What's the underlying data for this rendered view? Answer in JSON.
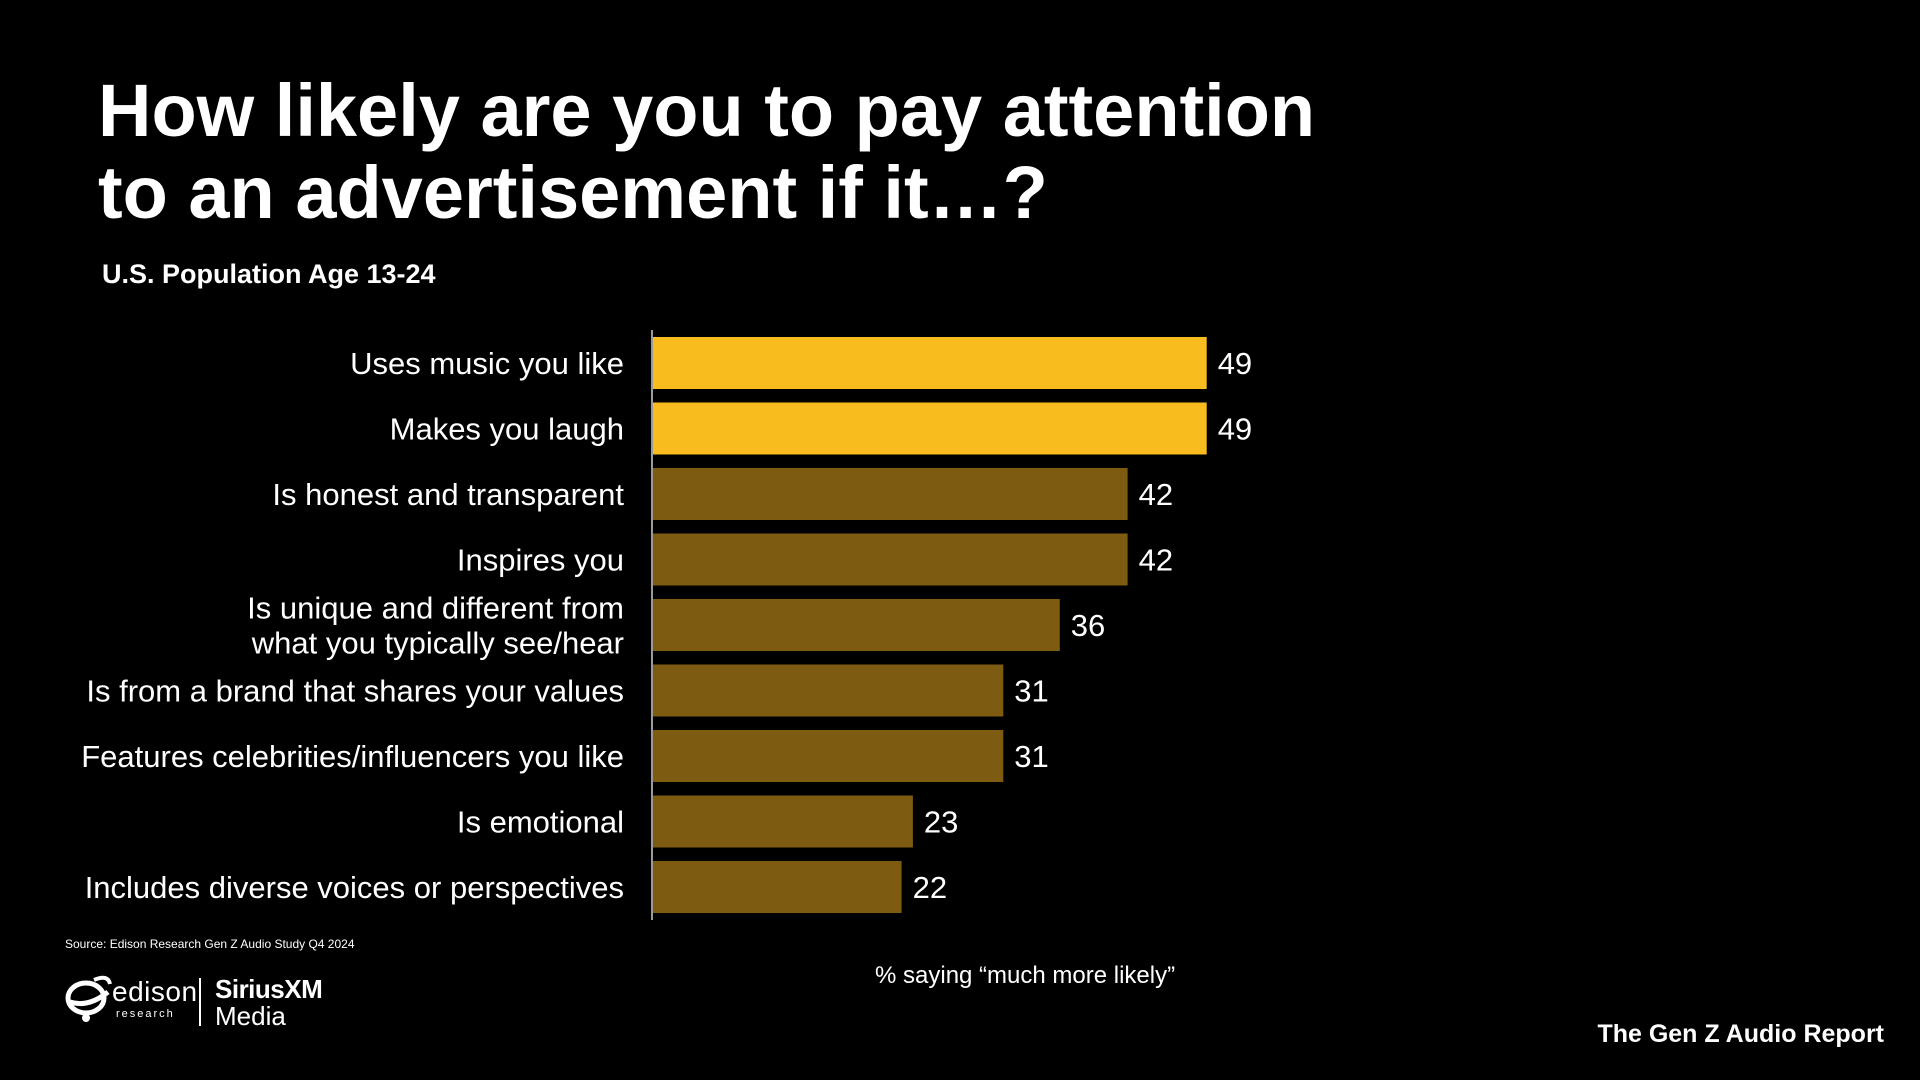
{
  "header": {
    "title_line1": "How likely are you to pay attention",
    "title_line2": "to an advertisement if it…?",
    "subtitle": "U.S. Population Age 13-24"
  },
  "chart_data": {
    "type": "bar",
    "orientation": "horizontal",
    "categories": [
      [
        "Uses music you like"
      ],
      [
        "Makes you laugh"
      ],
      [
        "Is honest and transparent"
      ],
      [
        "Inspires you"
      ],
      [
        "Is unique and different from",
        "what you typically see/hear"
      ],
      [
        "Is from a brand that shares your values"
      ],
      [
        "Features celebrities/influencers you like"
      ],
      [
        "Is emotional"
      ],
      [
        "Includes diverse voices or perspectives"
      ]
    ],
    "values": [
      49,
      49,
      42,
      42,
      36,
      31,
      31,
      23,
      22
    ],
    "highlight": [
      true,
      true,
      false,
      false,
      false,
      false,
      false,
      false,
      false
    ],
    "colors": {
      "highlight": "#F8BC1E",
      "base": "#7D5C12",
      "axis": "#9a9a9a"
    },
    "xlabel": "% saying “much more likely”",
    "xlim": [
      0,
      100
    ],
    "grid": false,
    "legend": "none"
  },
  "footer": {
    "source": "Source: Edison Research Gen Z Audio Study Q4 2024",
    "edison_logo": {
      "name": "edison",
      "sub": "research",
      "icon": "edison-swirl-icon"
    },
    "sirius_logo": {
      "line1": "SiriusXM",
      "line2": "Media"
    },
    "report_title": "The Gen Z Audio Report"
  }
}
